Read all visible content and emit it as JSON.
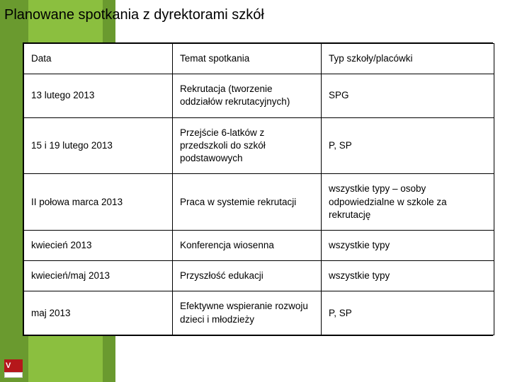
{
  "title": "Planowane spotkania z dyrektorami szkół",
  "table": {
    "columns": [
      "Data",
      "Temat spotkania",
      "Typ szkoły/placówki"
    ],
    "rows": [
      [
        "13 lutego 2013",
        "Rekrutacja (tworzenie oddziałów rekrutacyjnych)",
        "SPG"
      ],
      [
        "15 i 19 lutego 2013",
        "Przejście 6-latków z przedszkoli do szkół podstawowych",
        "P, SP"
      ],
      [
        "II połowa marca 2013",
        "Praca w systemie rekrutacji",
        "wszystkie typy – osoby odpowiedzialne w szkole za rekrutację"
      ],
      [
        "kwiecień 2013",
        "Konferencja wiosenna",
        "wszystkie typy"
      ],
      [
        "kwiecień/maj 2013",
        "Przyszłość edukacji",
        "wszystkie typy"
      ],
      [
        "maj 2013",
        "Efektywne wspieranie rozwoju dzieci i młodzieży",
        "P, SP"
      ]
    ]
  },
  "colors": {
    "stripe_dark": "#6a9a2f",
    "stripe_light": "#8bbf3f",
    "logo_red": "#b5171b",
    "border": "#000000",
    "background": "#ffffff"
  },
  "logo_text": "V"
}
